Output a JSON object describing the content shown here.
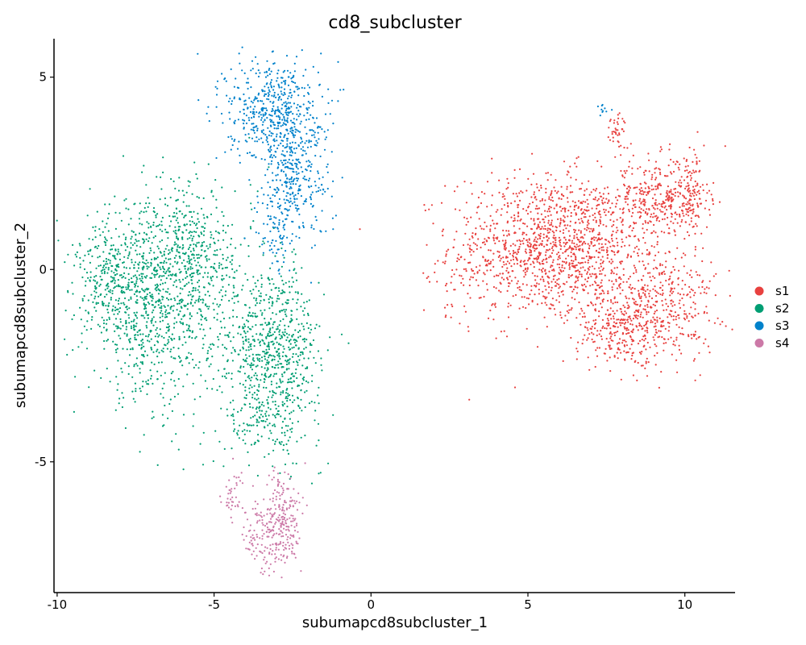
{
  "chart_data": {
    "type": "scatter",
    "title": "cd8_subcluster",
    "xlabel": "subumapcd8subcluster_1",
    "ylabel": "subumapcd8subcluster_2",
    "xlim": [
      -10.1,
      11.6
    ],
    "ylim": [
      -8.4,
      6.0
    ],
    "x_ticks": [
      -10,
      -5,
      0,
      5,
      10
    ],
    "x_tick_labels": [
      "-10",
      "-5",
      "0",
      "5",
      "10"
    ],
    "y_ticks": [
      -5,
      0,
      5
    ],
    "y_tick_labels": [
      "-5",
      "0",
      "5"
    ],
    "grid": false,
    "legend_position": "right",
    "series": [
      {
        "name": "s1",
        "color": "#E8413F",
        "clusters": [
          {
            "x": 5.3,
            "y": 0.6,
            "sx": 1.4,
            "sy": 0.95,
            "n": 900
          },
          {
            "x": 6.8,
            "y": 0.6,
            "sx": 0.9,
            "sy": 0.9,
            "n": 400
          },
          {
            "x": 9.1,
            "y": 1.8,
            "sx": 0.7,
            "sy": 0.55,
            "n": 350
          },
          {
            "x": 9.1,
            "y": -0.9,
            "sx": 0.95,
            "sy": 0.75,
            "n": 450
          },
          {
            "x": 8.0,
            "y": -1.6,
            "sx": 0.7,
            "sy": 0.45,
            "n": 200
          },
          {
            "x": 10.2,
            "y": 1.9,
            "sx": 0.3,
            "sy": 0.6,
            "n": 120
          },
          {
            "x": 7.9,
            "y": 3.6,
            "sx": 0.15,
            "sy": 0.25,
            "n": 40
          },
          {
            "x": 2.9,
            "y": -0.2,
            "sx": 0.4,
            "sy": 0.5,
            "n": 40
          }
        ]
      },
      {
        "name": "s2",
        "color": "#009E73",
        "clusters": [
          {
            "x": -7.0,
            "y": -0.8,
            "sx": 1.0,
            "sy": 1.25,
            "n": 900
          },
          {
            "x": -5.6,
            "y": 0.6,
            "sx": 0.6,
            "sy": 0.9,
            "n": 250
          },
          {
            "x": -8.4,
            "y": -0.2,
            "sx": 0.5,
            "sy": 0.7,
            "n": 200
          },
          {
            "x": -3.0,
            "y": -2.3,
            "sx": 0.7,
            "sy": 1.1,
            "n": 650
          },
          {
            "x": -4.6,
            "y": -1.2,
            "sx": 1.0,
            "sy": 1.4,
            "n": 250
          },
          {
            "x": -3.5,
            "y": -4.1,
            "sx": 0.5,
            "sy": 0.45,
            "n": 70
          }
        ]
      },
      {
        "name": "s3",
        "color": "#0082CB",
        "clusters": [
          {
            "x": -3.1,
            "y": 4.2,
            "sx": 0.75,
            "sy": 0.65,
            "n": 500
          },
          {
            "x": -2.5,
            "y": 2.4,
            "sx": 0.6,
            "sy": 0.8,
            "n": 350
          },
          {
            "x": -3.0,
            "y": 0.9,
            "sx": 0.35,
            "sy": 0.5,
            "n": 60
          },
          {
            "x": 7.4,
            "y": 4.15,
            "sx": 0.15,
            "sy": 0.08,
            "n": 10
          }
        ]
      },
      {
        "name": "s4",
        "color": "#CC79A7",
        "clusters": [
          {
            "x": -3.1,
            "y": -6.9,
            "sx": 0.45,
            "sy": 0.5,
            "n": 220
          },
          {
            "x": -2.8,
            "y": -6.1,
            "sx": 0.3,
            "sy": 0.5,
            "n": 90
          },
          {
            "x": -4.4,
            "y": -5.9,
            "sx": 0.2,
            "sy": 0.35,
            "n": 40
          }
        ]
      }
    ]
  }
}
